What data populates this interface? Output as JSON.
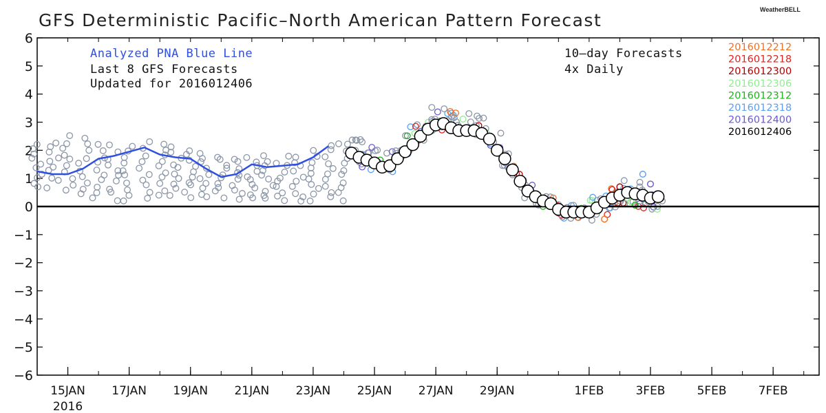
{
  "title": "GFS Deterministic Pacific–North American Pattern Forecast",
  "brand": "WeatherBELL",
  "annotations": {
    "left_line1": "Analyzed PNA Blue Line",
    "left_line2": "Last 8 GFS Forecasts",
    "left_line3": "Updated for 2016012406",
    "right_line1": "10–day Forecasts",
    "right_line2": "4x Daily"
  },
  "colors": {
    "analyzed": "#2f4fe0",
    "history_markers": "#8a96a8",
    "zero_line": "#000000",
    "latest_marker_fill": "#ffffff"
  },
  "chart_data": {
    "type": "line",
    "ylim": [
      -6,
      6
    ],
    "y_ticks": [
      "6",
      "5",
      "4",
      "3",
      "2",
      "1",
      "0",
      "−1",
      "−2",
      "−3",
      "−4",
      "−5",
      "−6"
    ],
    "y_tick_values": [
      6,
      5,
      4,
      3,
      2,
      1,
      0,
      -1,
      -2,
      -3,
      -4,
      -5,
      -6
    ],
    "x_tick_labels": [
      "15JAN",
      "17JAN",
      "19JAN",
      "21JAN",
      "23JAN",
      "25JAN",
      "27JAN",
      "29JAN",
      "1FEB",
      "3FEB",
      "5FEB",
      "7FEB"
    ],
    "x_tick_dates": [
      "2016-01-15",
      "2016-01-17",
      "2016-01-19",
      "2016-01-21",
      "2016-01-23",
      "2016-01-25",
      "2016-01-27",
      "2016-01-29",
      "2016-02-01",
      "2016-02-03",
      "2016-02-05",
      "2016-02-07"
    ],
    "x_year_label": "2016",
    "xlim": [
      "2016-01-14T00",
      "2016-02-08T12"
    ],
    "analyzed": {
      "name": "Analyzed PNA Blue Line",
      "color": "#2f4fe0",
      "x": [
        "2016-01-14T00",
        "2016-01-14T12",
        "2016-01-15T00",
        "2016-01-15T12",
        "2016-01-16T00",
        "2016-01-16T12",
        "2016-01-17T00",
        "2016-01-17T12",
        "2016-01-18T00",
        "2016-01-18T12",
        "2016-01-19T00",
        "2016-01-19T12",
        "2016-01-20T00",
        "2016-01-20T12",
        "2016-01-21T00",
        "2016-01-21T12",
        "2016-01-22T00",
        "2016-01-22T12",
        "2016-01-23T00",
        "2016-01-23T12"
      ],
      "values": [
        1.25,
        1.15,
        1.15,
        1.35,
        1.7,
        1.8,
        1.95,
        2.1,
        1.85,
        1.75,
        1.7,
        1.35,
        1.05,
        1.15,
        1.5,
        1.4,
        1.45,
        1.5,
        1.75,
        2.15
      ]
    },
    "history_cloud": {
      "description_color": "#8a96a8",
      "x": [
        "2016-01-14T00",
        "2016-01-14T12",
        "2016-01-15T00",
        "2016-01-15T12",
        "2016-01-16T00",
        "2016-01-16T12",
        "2016-01-17T00",
        "2016-01-17T12",
        "2016-01-18T00",
        "2016-01-18T12",
        "2016-01-19T00",
        "2016-01-19T12",
        "2016-01-20T00",
        "2016-01-20T12",
        "2016-01-21T00",
        "2016-01-21T12",
        "2016-01-22T00",
        "2016-01-22T12",
        "2016-01-23T00",
        "2016-01-23T12",
        "2016-01-24T00"
      ],
      "low": [
        0.7,
        0.7,
        0.6,
        0.4,
        0.3,
        0.25,
        0.2,
        0.3,
        0.4,
        0.4,
        0.35,
        0.3,
        0.35,
        0.3,
        0.3,
        0.25,
        0.2,
        0.15,
        0.25,
        0.3,
        0.25
      ],
      "high": [
        2.2,
        2.3,
        2.5,
        2.4,
        2.2,
        2.15,
        2.2,
        2.3,
        2.2,
        2.1,
        2.0,
        1.9,
        1.8,
        1.7,
        1.75,
        1.8,
        1.75,
        1.8,
        2.0,
        2.2,
        2.2
      ]
    },
    "forecasts": [
      {
        "name": "2016012212",
        "color": "#f07020",
        "end": "2016-02-01T12",
        "end_value": -0.45
      },
      {
        "name": "2016012218",
        "color": "#e02020",
        "end": "2016-02-01T18",
        "end_value": 0.6
      },
      {
        "name": "2016012300",
        "color": "#b00000",
        "end": "2016-02-02T00",
        "end_value": 0.7
      },
      {
        "name": "2016012306",
        "color": "#90ee90",
        "end": "2016-02-02T06",
        "end_value": 0.3
      },
      {
        "name": "2016012312",
        "color": "#20b020",
        "end": "2016-02-02T12",
        "end_value": 0.05
      },
      {
        "name": "2016012318",
        "color": "#5aa0f0",
        "end": "2016-02-02T18",
        "end_value": 1.15
      },
      {
        "name": "2016012400",
        "color": "#6a5acd",
        "end": "2016-02-03T00",
        "end_value": 0.8
      },
      {
        "name": "2016012406",
        "color": "#000000",
        "end": "2016-02-03T06",
        "end_value": 0.35
      }
    ],
    "latest": {
      "name": "2016012406",
      "x": [
        "2016-01-24T06",
        "2016-01-24T12",
        "2016-01-24T18",
        "2016-01-25T00",
        "2016-01-25T06",
        "2016-01-25T12",
        "2016-01-25T18",
        "2016-01-26T00",
        "2016-01-26T06",
        "2016-01-26T12",
        "2016-01-26T18",
        "2016-01-27T00",
        "2016-01-27T06",
        "2016-01-27T12",
        "2016-01-27T18",
        "2016-01-28T00",
        "2016-01-28T06",
        "2016-01-28T12",
        "2016-01-28T18",
        "2016-01-29T00",
        "2016-01-29T06",
        "2016-01-29T12",
        "2016-01-29T18",
        "2016-01-30T00",
        "2016-01-30T06",
        "2016-01-30T12",
        "2016-01-30T18",
        "2016-01-31T00",
        "2016-01-31T06",
        "2016-01-31T12",
        "2016-01-31T18",
        "2016-02-01T00",
        "2016-02-01T06",
        "2016-02-01T12",
        "2016-02-01T18",
        "2016-02-02T00",
        "2016-02-02T06",
        "2016-02-02T12",
        "2016-02-02T18",
        "2016-02-03T00",
        "2016-02-03T06"
      ],
      "values": [
        1.9,
        1.75,
        1.65,
        1.55,
        1.4,
        1.45,
        1.7,
        1.95,
        2.2,
        2.5,
        2.75,
        2.9,
        2.95,
        2.8,
        2.7,
        2.7,
        2.7,
        2.6,
        2.4,
        2.0,
        1.7,
        1.3,
        0.9,
        0.55,
        0.35,
        0.2,
        0.1,
        -0.1,
        -0.2,
        -0.2,
        -0.2,
        -0.2,
        -0.05,
        0.15,
        0.3,
        0.4,
        0.5,
        0.45,
        0.4,
        0.3,
        0.35
      ]
    }
  }
}
